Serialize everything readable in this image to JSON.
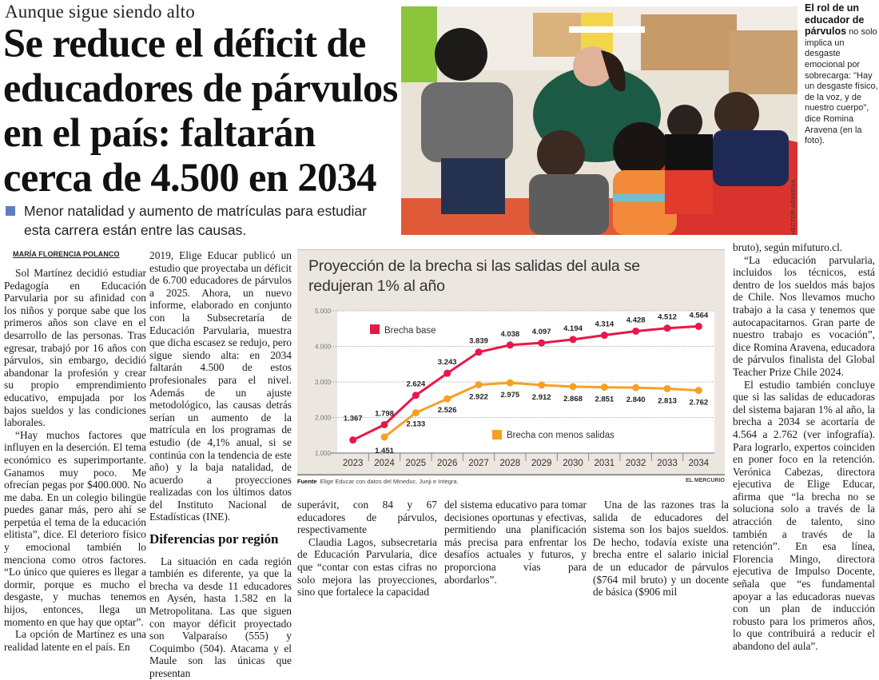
{
  "article": {
    "kicker": "Aunque sigue siendo alto",
    "headline": "Se reduce el déficit de educadores de párvulos en el país: faltarán cerca de 4.500 en 2034",
    "dek": "Menor natalidad y aumento de matrículas para estudiar esta carrera están entre las causas.",
    "byline": "MARÍA FLORENCIA POLANCO",
    "photo_credit": "HÉCTOR ARAVENA",
    "photo_alt": "Educadora de párvulos con niños en una sala",
    "caption": {
      "bold": "El rol de un educador de párvulos",
      "text": " no solo implica un desgaste emocional por sobrecarga: \"Hay un desgaste físico, de la voz, y de nuestro cuerpo\", dice Romina Aravena (en la foto)."
    },
    "col1": [
      "Sol Martínez decidió estudiar Pedagogía en Educación Parvularia por su afinidad con los niños y porque sabe que los primeros años son clave en el desarrollo de las personas. Tras egresar, trabajó por 16 años con párvulos, sin embargo, decidió abandonar la profesión y crear su propio emprendimiento educativo, empujada por los bajos sueldos y las condiciones laborales.",
      "“Hay muchos factores que influyen en la deserción. El tema económico es superimportante. Ganamos muy poco. Me ofrecían pegas por $400.000. No me daba. En un colegio bilingüe puedes ganar más, pero ahí se perpetúa el tema de la educación elitista”, dice. El deterioro físico y emocional también lo menciona como otros factores. “Lo único que quieres es llegar a dormir, porque es mucho el desgaste, y muchas tenemos hijos, entonces, llega un momento en que hay que optar”.",
      "La opción de Martínez es una realidad latente en el país. En"
    ],
    "col2": [
      "2019, Elige Educar publicó un estudio que proyectaba un déficit de 6.700 educadores de párvulos a 2025. Ahora, un nuevo informe, elaborado en conjunto con la Subsecretaría de Educación Parvularia, muestra que dicha escasez se redujo, pero sigue siendo alta: en 2034 faltarán 4.500 de estos profesionales para el nivel. Además de un ajuste metodológico, las causas detrás serían un aumento de la matrícula en los programas de estudio (de 4,1% anual, si se continúa con la tendencia de este año) y la baja natalidad, de acuerdo a proyecciones realizadas con los últimos datos del Instituto Nacional de Estadísticas (INE)."
    ],
    "subhead": "Diferencias por región",
    "col2b": [
      "La situación en cada región también es diferente, ya que la brecha va desde 11 educadores en Aysén, hasta 1.582 en la Metropolitana. Las que siguen con mayor déficit proyectado son Valparaíso (555) y Coquimbo (504). Atacama y el Maule son las únicas que presentan"
    ],
    "col3": [
      "superávit, con 84 y 67 educadores de párvulos, respectivamente",
      "Claudia Lagos, subsecretaria de Educación Parvularia, dice que “contar con estas cifras no solo mejora las proyecciones, sino que fortalece la capacidad"
    ],
    "col4": [
      "del sistema educativo para tomar decisiones oportunas y efectivas, permitiendo una planificación más precisa para enfrentar los desafíos actuales y futuros, y proporciona vías para abordarlos”."
    ],
    "col5": [
      "Una de las razones tras la salida de educadores del sistema son los bajos sueldos. De hecho, todavía existe una brecha entre el salario inicial de un educador de párvulos ($764 mil bruto) y un docente de básica ($906 mil"
    ],
    "col6": [
      "bruto), según mifuturo.cl.",
      "“La educación parvularia, incluidos los técnicos, está dentro de los sueldos más bajos de Chile. Nos llevamos mucho trabajo a la casa y tenemos que autocapacitarnos. Gran parte de nuestro trabajo es vocación”, dice Romina Aravena, educadora de párvulos finalista del Global Teacher Prize Chile 2024.",
      "El estudio también concluye que si las salidas de educadoras del sistema bajaran 1% al año, la brecha a 2034 se acortaría de 4.564 a 2.762 (ver infografía). Para lograrlo, expertos coinciden en poner foco en la retención. Verónica Cabezas, directora ejecutiva de Elige Educar, afirma que “la brecha no se soluciona solo a través de la atracción de talento, sino también a través de la retención”. En esa línea, Florencia Mingo, directora ejecutiva de Impulso Docente, señala que “es fundamental apoyar a las educadoras nuevas con un plan de inducción robusto para los primeros años, lo que contribuirá a reducir el abandono del aula”."
    ]
  },
  "infographic": {
    "source_label": "Fuente",
    "source_text": "Elige Educar con datos del Mineduc, Junji e Integra.",
    "brand": "EL MERCURIO"
  },
  "chart_data": {
    "type": "line",
    "title": "Proyección de la brecha si las salidas del aula se redujeran 1% al año",
    "xlabel": "",
    "ylabel": "",
    "x": [
      "2023",
      "2024",
      "2025",
      "2026",
      "2027",
      "2028",
      "2029",
      "2030",
      "2031",
      "2032",
      "2033",
      "2034"
    ],
    "ylim": [
      1000,
      5000
    ],
    "yticks": [
      1000,
      2000,
      3000,
      4000,
      5000
    ],
    "ytick_labels": [
      "1.000",
      "2.000",
      "3.000",
      "4.000",
      "5.000"
    ],
    "grid": true,
    "series": [
      {
        "name": "Brecha base",
        "color": "#e8174a",
        "values": [
          1367,
          1798,
          2624,
          3243,
          3839,
          4038,
          4097,
          4194,
          4314,
          4428,
          4512,
          4564
        ],
        "labels": [
          "1.367",
          "1.798",
          "2.624",
          "3.243",
          "3.839",
          "4.038",
          "4.097",
          "4.194",
          "4.314",
          "4.428",
          "4.512",
          "4.564"
        ]
      },
      {
        "name": "Brecha con menos salidas",
        "color": "#f7a024",
        "values": [
          null,
          1451,
          2133,
          2526,
          2922,
          2975,
          2912,
          2868,
          2851,
          2840,
          2813,
          2762
        ],
        "labels": [
          null,
          "1.451",
          "2.133",
          "2.526",
          "2.922",
          "2.975",
          "2.912",
          "2.868",
          "2.851",
          "2.840",
          "2.813",
          "2.762"
        ]
      }
    ],
    "legend": [
      {
        "name": "Brecha base",
        "placement": "top-left"
      },
      {
        "name": "Brecha con menos salidas",
        "placement": "bottom-center"
      }
    ]
  }
}
